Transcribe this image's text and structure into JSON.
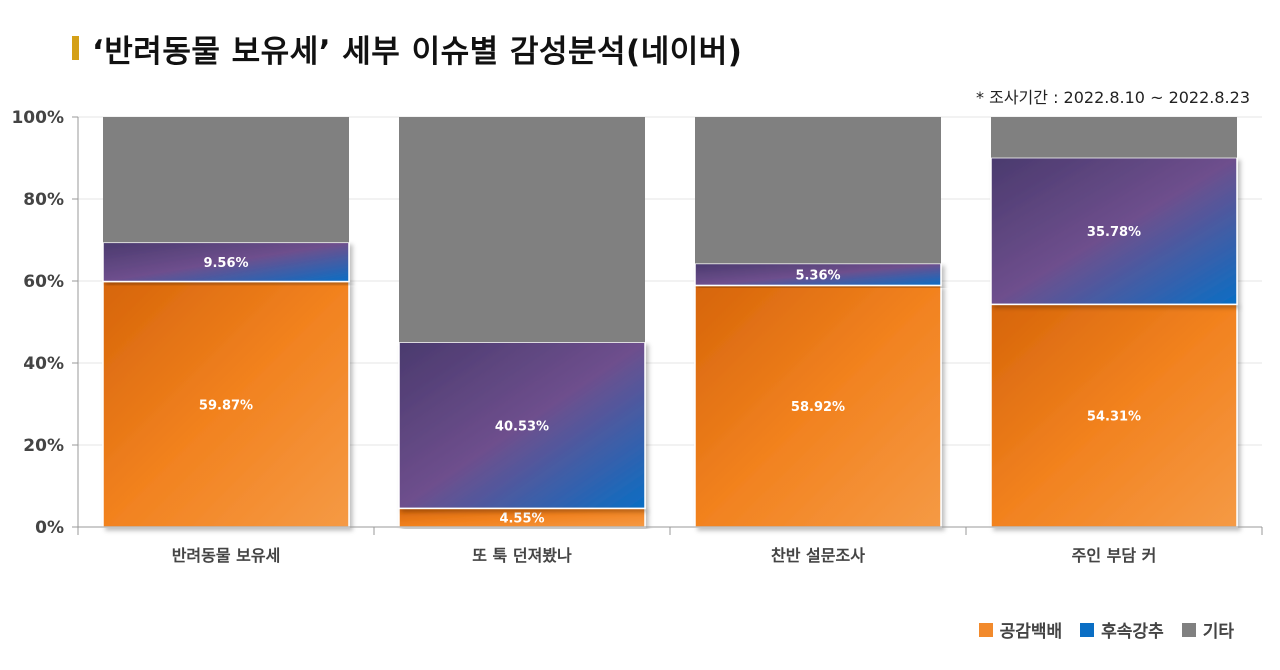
{
  "title": "‘반려동물 보유세’ 세부 이슈별 감성분석(네이버)",
  "subtitle": "* 조사기간 : 2022.8.10 ~ 2022.8.23",
  "colors": {
    "accent": "#d4a017",
    "empathy": "#f28a2c",
    "regret": "#0a6ec4",
    "other": "#808080"
  },
  "chart_data": {
    "type": "bar",
    "stacked": true,
    "categories": [
      "반려동물 보유세",
      "또 툭 던져봤나",
      "찬반 설문조사",
      "주인 부담 커"
    ],
    "series": [
      {
        "name": "공감백배",
        "values": [
          59.87,
          4.55,
          58.92,
          54.31
        ],
        "labels": [
          "59.87%",
          "4.55%",
          "58.92%",
          "54.31%"
        ]
      },
      {
        "name": "후속강추",
        "values": [
          9.56,
          40.53,
          5.36,
          35.78
        ],
        "labels": [
          "9.56%",
          "40.53%",
          "5.36%",
          "35.78%"
        ]
      },
      {
        "name": "기타",
        "values": [
          30.57,
          54.92,
          35.72,
          9.91
        ]
      }
    ],
    "y_ticks": [
      "0%",
      "20%",
      "40%",
      "60%",
      "80%",
      "100%"
    ],
    "ylim": [
      0,
      100
    ],
    "grid": true,
    "legend_position": "bottom-right"
  }
}
